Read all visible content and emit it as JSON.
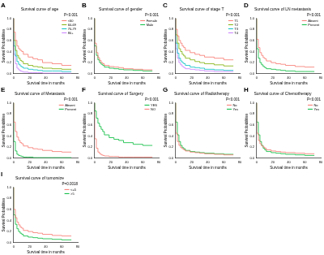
{
  "chart_data": [
    {
      "type": "line",
      "title": "Survival curve of age",
      "subtitle": "P<0.001",
      "annotations": [
        "A"
      ],
      "x_label": "Survival time in months",
      "y_label": "Survival Probabilities",
      "x": [
        0,
        2,
        4,
        6,
        8,
        10,
        12,
        18,
        24,
        30,
        36,
        48,
        60,
        72
      ],
      "series": [
        {
          "name": "<60",
          "color": "#F8766D",
          "values": [
            1,
            0.75,
            0.6,
            0.5,
            0.45,
            0.42,
            0.4,
            0.35,
            0.3,
            0.27,
            0.25,
            0.2,
            0.18,
            0.15
          ]
        },
        {
          "name": "60-69",
          "color": "#7CAE00",
          "values": [
            1,
            0.6,
            0.42,
            0.33,
            0.28,
            0.24,
            0.22,
            0.18,
            0.15,
            0.13,
            0.12,
            0.1,
            0.09,
            0.08
          ]
        },
        {
          "name": "70-79",
          "color": "#00BFC4",
          "values": [
            1,
            0.5,
            0.32,
            0.22,
            0.17,
            0.14,
            0.12,
            0.1,
            0.08,
            0.07,
            0.06,
            0.05,
            0.05,
            0.04
          ]
        },
        {
          "name": "80+",
          "color": "#C77CFF",
          "values": [
            1,
            0.35,
            0.18,
            0.1,
            0.07,
            0.05,
            0.04,
            0.03,
            0.02,
            0.02,
            0.02,
            0.01,
            0.01,
            0.01
          ]
        }
      ],
      "line_style": "step",
      "xlim": [
        0,
        80
      ],
      "xticks": [
        0,
        20,
        40,
        60,
        80
      ],
      "ylim": [
        0,
        1
      ],
      "yticks": [
        {
          "value": 0,
          "label": "0.0"
        },
        {
          "value": 0.2,
          "label": "0.2"
        },
        {
          "value": 0.4,
          "label": "0.4"
        },
        {
          "value": 0.6,
          "label": "0.6"
        },
        {
          "value": 0.8,
          "label": "0.8"
        },
        {
          "value": 1,
          "label": "1.0"
        }
      ],
      "grid": false,
      "legend": "top right"
    },
    {
      "type": "line",
      "title": "Survival curve of gender",
      "subtitle": "P<0.001",
      "annotations": [
        "B"
      ],
      "x_label": "Survival time in months",
      "y_label": "Survival Probabilities",
      "x": [
        0,
        2,
        4,
        6,
        8,
        10,
        12,
        18,
        24,
        30,
        36,
        48,
        60,
        72
      ],
      "series": [
        {
          "name": "Female",
          "color": "#F8766D",
          "values": [
            1,
            0.55,
            0.38,
            0.29,
            0.24,
            0.2,
            0.18,
            0.15,
            0.13,
            0.12,
            0.11,
            0.09,
            0.08,
            0.07
          ]
        },
        {
          "name": "Male",
          "color": "#00BA38",
          "values": [
            1,
            0.5,
            0.33,
            0.25,
            0.2,
            0.17,
            0.15,
            0.12,
            0.1,
            0.09,
            0.08,
            0.07,
            0.06,
            0.05
          ]
        }
      ],
      "line_style": "step",
      "xlim": [
        0,
        80
      ],
      "xticks": [
        0,
        20,
        40,
        60,
        80
      ],
      "ylim": [
        0,
        1
      ],
      "yticks": [
        {
          "value": 0,
          "label": "0.0"
        },
        {
          "value": 0.2,
          "label": "0.2"
        },
        {
          "value": 0.4,
          "label": "0.4"
        },
        {
          "value": 0.6,
          "label": "0.6"
        },
        {
          "value": 0.8,
          "label": "0.8"
        },
        {
          "value": 1,
          "label": "1.0"
        }
      ],
      "grid": false,
      "legend": "top right"
    },
    {
      "type": "line",
      "title": "Survival curve of stage T",
      "subtitle": "P<0.001",
      "annotations": [
        "C"
      ],
      "x_label": "Survival time in months",
      "y_label": "Survival Probabilities",
      "x": [
        0,
        2,
        4,
        6,
        8,
        10,
        12,
        18,
        24,
        30,
        36,
        48,
        60,
        72
      ],
      "series": [
        {
          "name": "T1",
          "color": "#F8766D",
          "values": [
            1,
            0.8,
            0.68,
            0.6,
            0.55,
            0.5,
            0.47,
            0.42,
            0.38,
            0.35,
            0.33,
            0.3,
            0.28,
            0.25
          ]
        },
        {
          "name": "T2",
          "color": "#7CAE00",
          "values": [
            1,
            0.7,
            0.55,
            0.45,
            0.4,
            0.35,
            0.32,
            0.28,
            0.25,
            0.22,
            0.2,
            0.18,
            0.16,
            0.14
          ]
        },
        {
          "name": "T3",
          "color": "#00BFC4",
          "values": [
            1,
            0.55,
            0.37,
            0.28,
            0.23,
            0.2,
            0.18,
            0.15,
            0.12,
            0.11,
            0.1,
            0.08,
            0.07,
            0.06
          ]
        },
        {
          "name": "T4",
          "color": "#C77CFF",
          "values": [
            1,
            0.45,
            0.28,
            0.2,
            0.16,
            0.13,
            0.11,
            0.09,
            0.08,
            0.07,
            0.06,
            0.05,
            0.04,
            0.04
          ]
        }
      ],
      "line_style": "step",
      "xlim": [
        0,
        80
      ],
      "xticks": [
        0,
        20,
        40,
        60,
        80
      ],
      "ylim": [
        0,
        1
      ],
      "yticks": [
        {
          "value": 0,
          "label": "0.0"
        },
        {
          "value": 0.2,
          "label": "0.2"
        },
        {
          "value": 0.4,
          "label": "0.4"
        },
        {
          "value": 0.6,
          "label": "0.6"
        },
        {
          "value": 0.8,
          "label": "0.8"
        },
        {
          "value": 1,
          "label": "1.0"
        }
      ],
      "grid": false,
      "legend": "top right"
    },
    {
      "type": "line",
      "title": "Survival curve of LN metastasis",
      "subtitle": "P<0.001",
      "annotations": [
        "D"
      ],
      "x_label": "Survival time in months",
      "y_label": "Survival Probabilities",
      "x": [
        0,
        2,
        4,
        6,
        8,
        10,
        12,
        18,
        24,
        30,
        36,
        48,
        60,
        72
      ],
      "series": [
        {
          "name": "Absent",
          "color": "#F8766D",
          "values": [
            1,
            0.62,
            0.47,
            0.38,
            0.33,
            0.29,
            0.27,
            0.23,
            0.2,
            0.18,
            0.17,
            0.15,
            0.13,
            0.12
          ]
        },
        {
          "name": "Present",
          "color": "#00BA38",
          "values": [
            1,
            0.45,
            0.28,
            0.2,
            0.16,
            0.13,
            0.11,
            0.09,
            0.08,
            0.07,
            0.06,
            0.05,
            0.04,
            0.04
          ]
        }
      ],
      "line_style": "step",
      "xlim": [
        0,
        80
      ],
      "xticks": [
        0,
        20,
        40,
        60,
        80
      ],
      "ylim": [
        0,
        1
      ],
      "yticks": [
        {
          "value": 0,
          "label": "0.0"
        },
        {
          "value": 0.2,
          "label": "0.2"
        },
        {
          "value": 0.4,
          "label": "0.4"
        },
        {
          "value": 0.6,
          "label": "0.6"
        },
        {
          "value": 0.8,
          "label": "0.8"
        },
        {
          "value": 1,
          "label": "1.0"
        }
      ],
      "grid": false,
      "legend": "top right"
    },
    {
      "type": "line",
      "title": "Survival curve of Metastasis",
      "subtitle": "P<0.001",
      "annotations": [
        "E"
      ],
      "x_label": "Survival time in months",
      "y_label": "Survival Probabilities",
      "x": [
        0,
        2,
        4,
        6,
        8,
        10,
        12,
        18,
        24,
        30,
        36,
        48,
        60,
        72
      ],
      "series": [
        {
          "name": "Absent",
          "color": "#F8766D",
          "values": [
            1,
            0.65,
            0.48,
            0.38,
            0.32,
            0.28,
            0.26,
            0.22,
            0.19,
            0.17,
            0.16,
            0.14,
            0.12,
            0.11
          ]
        },
        {
          "name": "Present",
          "color": "#00BA38",
          "values": [
            1,
            0.3,
            0.13,
            0.07,
            0.05,
            0.04,
            0.03,
            0.02,
            0.02,
            0.01,
            0.01,
            0.01,
            0.01,
            0.01
          ]
        }
      ],
      "line_style": "step",
      "xlim": [
        0,
        80
      ],
      "xticks": [
        0,
        20,
        40,
        60,
        80
      ],
      "ylim": [
        0,
        1
      ],
      "yticks": [
        {
          "value": 0,
          "label": "0.0"
        },
        {
          "value": 0.2,
          "label": "0.2"
        },
        {
          "value": 0.4,
          "label": "0.4"
        },
        {
          "value": 0.6,
          "label": "0.6"
        },
        {
          "value": 0.8,
          "label": "0.8"
        },
        {
          "value": 1,
          "label": "1.0"
        }
      ],
      "grid": false,
      "legend": "top right"
    },
    {
      "type": "line",
      "title": "Survival curve of Surgery",
      "subtitle": "P<0.001",
      "annotations": [
        "F"
      ],
      "x_label": "Survival time in months",
      "y_label": "Survival Probabilities",
      "x": [
        0,
        2,
        4,
        6,
        8,
        10,
        12,
        18,
        24,
        30,
        36,
        48,
        60,
        72
      ],
      "series": [
        {
          "name": "YES",
          "color": "#00BA38",
          "values": [
            1,
            0.85,
            0.72,
            0.63,
            0.57,
            0.52,
            0.48,
            0.42,
            0.37,
            0.34,
            0.32,
            0.28,
            0.25,
            0.23
          ]
        },
        {
          "name": "NO",
          "color": "#F8766D",
          "values": [
            1,
            0.35,
            0.18,
            0.11,
            0.08,
            0.06,
            0.05,
            0.04,
            0.03,
            0.03,
            0.02,
            0.02,
            0.02,
            0.02
          ]
        }
      ],
      "line_style": "step",
      "xlim": [
        0,
        80
      ],
      "xticks": [
        0,
        20,
        40,
        60,
        80
      ],
      "ylim": [
        0,
        1
      ],
      "yticks": [
        {
          "value": 0,
          "label": "0.0"
        },
        {
          "value": 0.2,
          "label": "0.2"
        },
        {
          "value": 0.4,
          "label": "0.4"
        },
        {
          "value": 0.6,
          "label": "0.6"
        },
        {
          "value": 0.8,
          "label": "0.8"
        },
        {
          "value": 1,
          "label": "1.0"
        }
      ],
      "grid": false,
      "legend": "top right"
    },
    {
      "type": "line",
      "title": "Survival curve of Radiotherapy",
      "subtitle": "P<0.001",
      "annotations": [
        "G"
      ],
      "x_label": "Survival time in months",
      "y_label": "Survival Probabilities",
      "x": [
        0,
        2,
        4,
        6,
        8,
        10,
        12,
        18,
        24,
        30,
        36,
        48,
        60,
        72
      ],
      "series": [
        {
          "name": "No",
          "color": "#F8766D",
          "values": [
            1,
            0.45,
            0.3,
            0.23,
            0.19,
            0.17,
            0.15,
            0.13,
            0.11,
            0.1,
            0.09,
            0.08,
            0.07,
            0.06
          ]
        },
        {
          "name": "Yes",
          "color": "#00BA38",
          "values": [
            1,
            0.65,
            0.42,
            0.3,
            0.23,
            0.19,
            0.17,
            0.14,
            0.12,
            0.11,
            0.1,
            0.09,
            0.08,
            0.07
          ]
        }
      ],
      "line_style": "step",
      "xlim": [
        0,
        80
      ],
      "xticks": [
        0,
        20,
        40,
        60,
        80
      ],
      "ylim": [
        0,
        1
      ],
      "yticks": [
        {
          "value": 0,
          "label": "0.0"
        },
        {
          "value": 0.2,
          "label": "0.2"
        },
        {
          "value": 0.4,
          "label": "0.4"
        },
        {
          "value": 0.6,
          "label": "0.6"
        },
        {
          "value": 0.8,
          "label": "0.8"
        },
        {
          "value": 1,
          "label": "1.0"
        }
      ],
      "grid": false,
      "legend": "top right"
    },
    {
      "type": "line",
      "title": "Survival curve of Chemotherapy",
      "subtitle": "P<0.001",
      "annotations": [
        "H"
      ],
      "x_label": "Survival time in months",
      "y_label": "Survival Probabilities",
      "x": [
        0,
        2,
        4,
        6,
        8,
        10,
        12,
        18,
        24,
        30,
        36,
        48,
        60,
        72
      ],
      "series": [
        {
          "name": "No",
          "color": "#F8766D",
          "values": [
            1,
            0.45,
            0.32,
            0.26,
            0.22,
            0.2,
            0.18,
            0.15,
            0.13,
            0.12,
            0.11,
            0.1,
            0.09,
            0.08
          ]
        },
        {
          "name": "Yes",
          "color": "#00BA38",
          "values": [
            1,
            0.65,
            0.42,
            0.3,
            0.23,
            0.18,
            0.15,
            0.12,
            0.1,
            0.09,
            0.08,
            0.07,
            0.06,
            0.05
          ]
        }
      ],
      "line_style": "step",
      "xlim": [
        0,
        80
      ],
      "xticks": [
        0,
        20,
        40,
        60,
        80
      ],
      "ylim": [
        0,
        1
      ],
      "yticks": [
        {
          "value": 0,
          "label": "0.0"
        },
        {
          "value": 0.2,
          "label": "0.2"
        },
        {
          "value": 0.4,
          "label": "0.4"
        },
        {
          "value": 0.6,
          "label": "0.6"
        },
        {
          "value": 0.8,
          "label": "0.8"
        },
        {
          "value": 1,
          "label": "1.0"
        }
      ],
      "grid": false,
      "legend": "top right"
    },
    {
      "type": "line",
      "title": "Survival curve of tumorsize",
      "subtitle": "P=0.0018",
      "annotations": [
        "I"
      ],
      "x_label": "Survival time in months",
      "y_label": "Survival Probabilities",
      "x": [
        0,
        2,
        4,
        6,
        8,
        10,
        12,
        18,
        24,
        30,
        36,
        48,
        60,
        72
      ],
      "series": [
        {
          "name": "<=5",
          "color": "#F8766D",
          "values": [
            1,
            0.6,
            0.45,
            0.37,
            0.32,
            0.28,
            0.26,
            0.22,
            0.2,
            0.18,
            0.17,
            0.15,
            0.13,
            0.12
          ]
        },
        {
          "name": ">5",
          "color": "#00BA38",
          "values": [
            1,
            0.5,
            0.33,
            0.25,
            0.2,
            0.17,
            0.15,
            0.12,
            0.1,
            0.09,
            0.08,
            0.07,
            0.06,
            0.05
          ]
        }
      ],
      "line_style": "step",
      "xlim": [
        0,
        80
      ],
      "xticks": [
        0,
        20,
        40,
        60,
        80
      ],
      "ylim": [
        0,
        1
      ],
      "yticks": [
        {
          "value": 0,
          "label": "0.0"
        },
        {
          "value": 0.2,
          "label": "0.2"
        },
        {
          "value": 0.4,
          "label": "0.4"
        },
        {
          "value": 0.6,
          "label": "0.6"
        },
        {
          "value": 0.8,
          "label": "0.8"
        },
        {
          "value": 1,
          "label": "1.0"
        }
      ],
      "grid": false,
      "legend": "top right"
    }
  ]
}
